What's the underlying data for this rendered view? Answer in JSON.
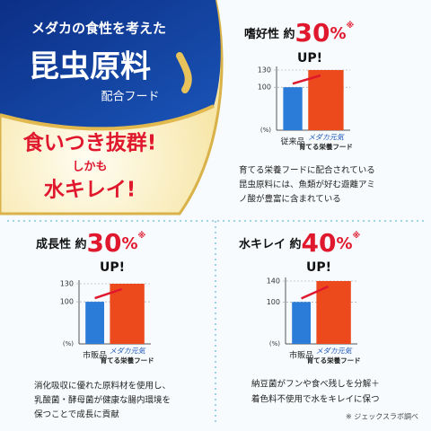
{
  "banner": {
    "lead": "メダカの食性を考えた",
    "title": "昆虫原料",
    "subtitle": "配合フード",
    "claim1": "食いつき抜群!",
    "connector": "しかも",
    "claim2": "水キレイ!"
  },
  "chart_data": [
    {
      "type": "bar",
      "headline": {
        "prefix": "嗜好性 約",
        "value": 30,
        "unit": "%",
        "note": "※",
        "suffix": "UP!"
      },
      "categories": [
        "従来品",
        "育てる栄養フード"
      ],
      "brand_label": "メダカ元気",
      "values": [
        100,
        130
      ],
      "colors": [
        "#2b7bd8",
        "#ec4a1c"
      ],
      "ylim": [
        25,
        130
      ],
      "yticks": [
        100,
        130
      ],
      "ylabel": "(%)",
      "caption": [
        "育てる栄養フードに配合されている",
        "昆虫原料には、魚類が好む遊離アミ",
        "ノ酸が豊富に含まれている"
      ]
    },
    {
      "type": "bar",
      "headline": {
        "prefix": "成長性 約",
        "value": 30,
        "unit": "%",
        "note": "※",
        "suffix": "UP!"
      },
      "categories": [
        "市販品",
        "育てる栄養フード"
      ],
      "brand_label": "メダカ元気",
      "values": [
        100,
        130
      ],
      "colors": [
        "#2b7bd8",
        "#ec4a1c"
      ],
      "ylim": [
        30,
        130
      ],
      "yticks": [
        100,
        130
      ],
      "ylabel": "(%)",
      "caption": [
        "消化吸収に優れた原料材を使用し、",
        "乳酸菌・酵母菌が健康な腸内環境を",
        "保つことで成長に貢献"
      ]
    },
    {
      "type": "bar",
      "headline": {
        "prefix": "水キレイ 約",
        "value": 40,
        "unit": "%",
        "note": "※",
        "suffix": "UP!"
      },
      "categories": [
        "市販品",
        "育てる栄養フード"
      ],
      "brand_label": "メダカ元気",
      "values": [
        100,
        140
      ],
      "colors": [
        "#2b7bd8",
        "#ec4a1c"
      ],
      "ylim": [
        20,
        140
      ],
      "yticks": [
        100,
        140
      ],
      "ylabel": "(%)",
      "caption": [
        "納豆菌がフンや食べ残しを分解＋",
        "着色料不使用で水をキレイに保つ"
      ]
    }
  ],
  "footnote": "※ ジェックスラボ調べ"
}
